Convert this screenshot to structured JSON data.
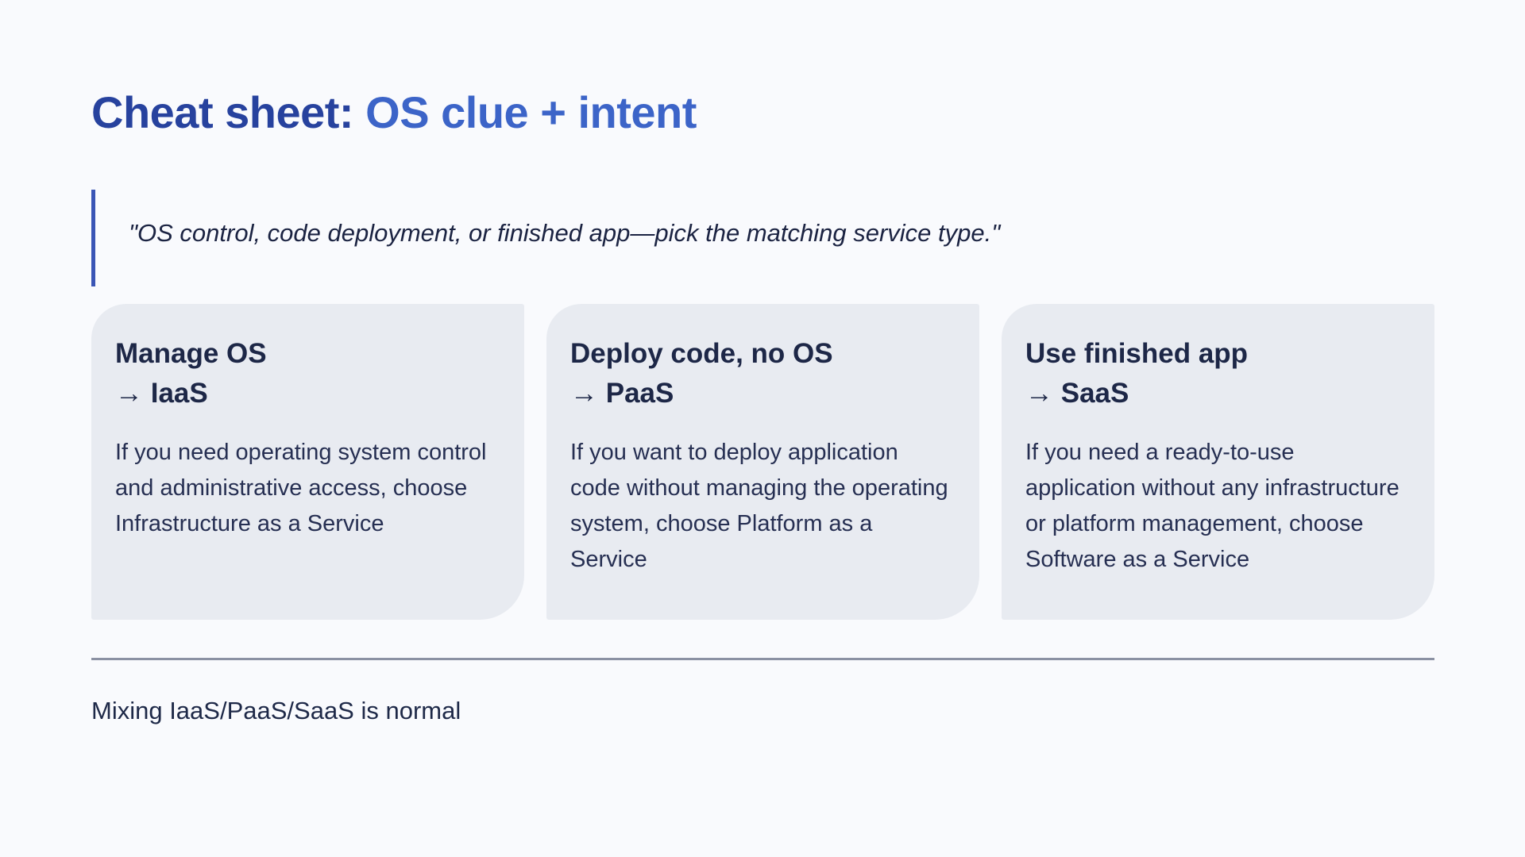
{
  "title": {
    "part1": "Cheat sheet: ",
    "part2": "OS clue + intent"
  },
  "quote": {
    "text": "\"OS control, code deployment, or finished app—pick the matching service type.\""
  },
  "cards": [
    {
      "title_line1": "Manage OS",
      "title_line2": "→ IaaS",
      "body": "If you need operating system control and administrative access, choose Infrastructure as a Service"
    },
    {
      "title_line1": "Deploy code, no OS",
      "title_line2": "→ PaaS",
      "body": "If you want to deploy application code without managing the operating system, choose Platform as a Service"
    },
    {
      "title_line1": "Use finished app",
      "title_line2": "→ SaaS",
      "body": "If you need a ready-to-use application without any infrastructure or platform management, choose Software as a Service"
    }
  ],
  "footer": {
    "text": "Mixing IaaS/PaaS/SaaS is normal"
  },
  "colors": {
    "page_background": "#f9fafd",
    "title_part1": "#27429e",
    "title_part2": "#3c64c8",
    "quote_bar": "#3a55b5",
    "quote_text": "#1b2342",
    "card_background": "#e8ebf1",
    "card_heading": "#1d2747",
    "card_body": "#262f52",
    "divider": "#8b91a3",
    "footer_text": "#1e2948"
  }
}
